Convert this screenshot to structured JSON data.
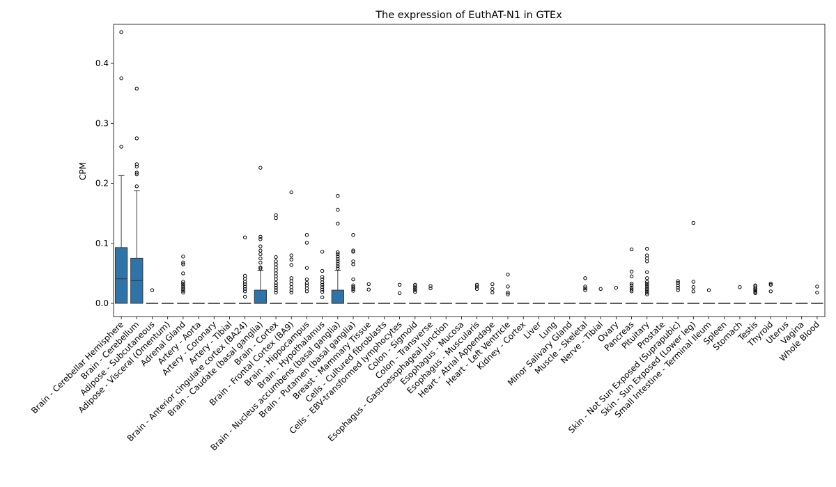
{
  "chart_data": {
    "type": "box",
    "title": "The expression of EuthAT-N1 in GTEx",
    "xlabel": "",
    "ylabel": "CPM",
    "ylim": [
      -0.022,
      0.465
    ],
    "yticks": [
      0.0,
      0.1,
      0.2,
      0.3,
      0.4
    ],
    "ytick_labels": [
      "0.0",
      "0.1",
      "0.2",
      "0.3",
      "0.4"
    ],
    "box_color": "#2f74a8",
    "categories": [
      "Brain - Cerebellar Hemisphere",
      "Brain - Cerebellum",
      "Adipose - Subcutaneous",
      "Adipose - Visceral (Omentum)",
      "Adrenal Gland",
      "Artery - Aorta",
      "Artery - Coronary",
      "Artery - Tibial",
      "Brain - Anterior cingulate cortex (BA24)",
      "Brain - Caudate (basal ganglia)",
      "Brain - Cortex",
      "Brain - Frontal Cortex (BA9)",
      "Brain - Hippocampus",
      "Brain - Hypothalamus",
      "Brain - Nucleus accumbens (basal ganglia)",
      "Brain - Putamen (basal ganglia)",
      "Breast - Mammary Tissue",
      "Cells - Cultured fibroblasts",
      "Cells - EBV-transformed lymphocytes",
      "Colon - Sigmoid",
      "Colon - Transverse",
      "Esophagus - Gastroesophageal Junction",
      "Esophagus - Mucosa",
      "Esophagus - Muscularis",
      "Heart - Atrial Appendage",
      "Heart - Left Ventricle",
      "Kidney - Cortex",
      "Liver",
      "Lung",
      "Minor Salivary Gland",
      "Muscle - Skeletal",
      "Nerve - Tibial",
      "Ovary",
      "Pancreas",
      "Pituitary",
      "Prostate",
      "Skin - Not Sun Exposed (Suprapubic)",
      "Skin - Sun Exposed (Lower leg)",
      "Small Intestine - Terminal Ileum",
      "Spleen",
      "Stomach",
      "Testis",
      "Thyroid",
      "Uterus",
      "Vagina",
      "Whole Blood"
    ],
    "boxes": [
      {
        "min": 0,
        "q1": 0,
        "median": 0.041,
        "q3": 0.093,
        "max": 0.213,
        "outliers": [
          0.261,
          0.375,
          0.452
        ]
      },
      {
        "min": 0,
        "q1": 0,
        "median": 0.038,
        "q3": 0.075,
        "max": 0.188,
        "outliers": [
          0.195,
          0.215,
          0.218,
          0.228,
          0.232,
          0.275,
          0.358
        ]
      },
      {
        "min": 0,
        "q1": 0,
        "median": 0,
        "q3": 0,
        "max": 0,
        "outliers": [
          0.022
        ]
      },
      {
        "min": 0,
        "q1": 0,
        "median": 0,
        "q3": 0,
        "max": 0,
        "outliers": []
      },
      {
        "min": 0,
        "q1": 0,
        "median": 0,
        "q3": 0,
        "max": 0,
        "outliers": [
          0.018,
          0.021,
          0.024,
          0.027,
          0.03,
          0.033,
          0.036,
          0.05,
          0.065,
          0.068,
          0.078
        ]
      },
      {
        "min": 0,
        "q1": 0,
        "median": 0,
        "q3": 0,
        "max": 0,
        "outliers": []
      },
      {
        "min": 0,
        "q1": 0,
        "median": 0,
        "q3": 0,
        "max": 0,
        "outliers": []
      },
      {
        "min": 0,
        "q1": 0,
        "median": 0,
        "q3": 0,
        "max": 0,
        "outliers": []
      },
      {
        "min": 0,
        "q1": 0,
        "median": 0,
        "q3": 0,
        "max": 0,
        "outliers": [
          0.011,
          0.02,
          0.024,
          0.028,
          0.032,
          0.036,
          0.041,
          0.046,
          0.11
        ]
      },
      {
        "min": 0,
        "q1": 0,
        "median": 0,
        "q3": 0.022,
        "max": 0.055,
        "outliers": [
          0.058,
          0.06,
          0.068,
          0.075,
          0.082,
          0.088,
          0.095,
          0.107,
          0.111,
          0.226
        ]
      },
      {
        "min": 0,
        "q1": 0,
        "median": 0,
        "q3": 0,
        "max": 0,
        "outliers": [
          0.018,
          0.022,
          0.026,
          0.03,
          0.034,
          0.04,
          0.045,
          0.05,
          0.055,
          0.06,
          0.065,
          0.07,
          0.077,
          0.142,
          0.147
        ]
      },
      {
        "min": 0,
        "q1": 0,
        "median": 0,
        "q3": 0,
        "max": 0,
        "outliers": [
          0.018,
          0.022,
          0.027,
          0.032,
          0.037,
          0.042,
          0.064,
          0.073,
          0.08,
          0.185
        ]
      },
      {
        "min": 0,
        "q1": 0,
        "median": 0,
        "q3": 0,
        "max": 0,
        "outliers": [
          0.02,
          0.025,
          0.03,
          0.034,
          0.04,
          0.059,
          0.101,
          0.114
        ]
      },
      {
        "min": 0,
        "q1": 0,
        "median": 0,
        "q3": 0,
        "max": 0,
        "outliers": [
          0.01,
          0.019,
          0.023,
          0.027,
          0.031,
          0.035,
          0.04,
          0.044,
          0.054,
          0.086
        ]
      },
      {
        "min": 0,
        "q1": 0,
        "median": 0,
        "q3": 0.022,
        "max": 0.055,
        "outliers": [
          0.058,
          0.062,
          0.066,
          0.07,
          0.074,
          0.078,
          0.082,
          0.085,
          0.133,
          0.156,
          0.179
        ]
      },
      {
        "min": 0,
        "q1": 0,
        "median": 0,
        "q3": 0,
        "max": 0,
        "outliers": [
          0.021,
          0.024,
          0.027,
          0.03,
          0.04,
          0.065,
          0.07,
          0.086,
          0.088,
          0.114
        ]
      },
      {
        "min": 0,
        "q1": 0,
        "median": 0,
        "q3": 0,
        "max": 0,
        "outliers": [
          0.023,
          0.032
        ]
      },
      {
        "min": 0,
        "q1": 0,
        "median": 0,
        "q3": 0,
        "max": 0,
        "outliers": []
      },
      {
        "min": 0,
        "q1": 0,
        "median": 0,
        "q3": 0,
        "max": 0,
        "outliers": [
          0.017,
          0.031
        ]
      },
      {
        "min": 0,
        "q1": 0,
        "median": 0,
        "q3": 0,
        "max": 0,
        "outliers": [
          0.019,
          0.022,
          0.025,
          0.028,
          0.031
        ]
      },
      {
        "min": 0,
        "q1": 0,
        "median": 0,
        "q3": 0,
        "max": 0,
        "outliers": [
          0.025,
          0.029
        ]
      },
      {
        "min": 0,
        "q1": 0,
        "median": 0,
        "q3": 0,
        "max": 0,
        "outliers": []
      },
      {
        "min": 0,
        "q1": 0,
        "median": 0,
        "q3": 0,
        "max": 0,
        "outliers": []
      },
      {
        "min": 0,
        "q1": 0,
        "median": 0,
        "q3": 0,
        "max": 0,
        "outliers": [
          0.024,
          0.028,
          0.031
        ]
      },
      {
        "min": 0,
        "q1": 0,
        "median": 0,
        "q3": 0,
        "max": 0,
        "outliers": [
          0.018,
          0.024,
          0.032
        ]
      },
      {
        "min": 0,
        "q1": 0,
        "median": 0,
        "q3": 0,
        "max": 0,
        "outliers": [
          0.015,
          0.018,
          0.028,
          0.048
        ]
      },
      {
        "min": 0,
        "q1": 0,
        "median": 0,
        "q3": 0,
        "max": 0,
        "outliers": []
      },
      {
        "min": 0,
        "q1": 0,
        "median": 0,
        "q3": 0,
        "max": 0,
        "outliers": []
      },
      {
        "min": 0,
        "q1": 0,
        "median": 0,
        "q3": 0,
        "max": 0,
        "outliers": []
      },
      {
        "min": 0,
        "q1": 0,
        "median": 0,
        "q3": 0,
        "max": 0,
        "outliers": []
      },
      {
        "min": 0,
        "q1": 0,
        "median": 0,
        "q3": 0,
        "max": 0,
        "outliers": [
          0.022,
          0.025,
          0.028,
          0.042
        ]
      },
      {
        "min": 0,
        "q1": 0,
        "median": 0,
        "q3": 0,
        "max": 0,
        "outliers": [
          0.024
        ]
      },
      {
        "min": 0,
        "q1": 0,
        "median": 0,
        "q3": 0,
        "max": 0,
        "outliers": [
          0.026
        ]
      },
      {
        "min": 0,
        "q1": 0,
        "median": 0,
        "q3": 0,
        "max": 0,
        "outliers": [
          0.02,
          0.023,
          0.026,
          0.03,
          0.033,
          0.045,
          0.053,
          0.09
        ]
      },
      {
        "min": 0,
        "q1": 0,
        "median": 0,
        "q3": 0,
        "max": 0,
        "outliers": [
          0.015,
          0.018,
          0.021,
          0.024,
          0.027,
          0.03,
          0.033,
          0.036,
          0.042,
          0.052,
          0.07,
          0.075,
          0.08,
          0.091
        ]
      },
      {
        "min": 0,
        "q1": 0,
        "median": 0,
        "q3": 0,
        "max": 0,
        "outliers": []
      },
      {
        "min": 0,
        "q1": 0,
        "median": 0,
        "q3": 0,
        "max": 0,
        "outliers": [
          0.022,
          0.026,
          0.03,
          0.034,
          0.037
        ]
      },
      {
        "min": 0,
        "q1": 0,
        "median": 0,
        "q3": 0,
        "max": 0,
        "outliers": [
          0.02,
          0.027,
          0.036,
          0.134
        ]
      },
      {
        "min": 0,
        "q1": 0,
        "median": 0,
        "q3": 0,
        "max": 0,
        "outliers": [
          0.022
        ]
      },
      {
        "min": 0,
        "q1": 0,
        "median": 0,
        "q3": 0,
        "max": 0,
        "outliers": []
      },
      {
        "min": 0,
        "q1": 0,
        "median": 0,
        "q3": 0,
        "max": 0,
        "outliers": [
          0.027
        ]
      },
      {
        "min": 0,
        "q1": 0,
        "median": 0,
        "q3": 0,
        "max": 0,
        "outliers": [
          0.017,
          0.019,
          0.021,
          0.023,
          0.025,
          0.028,
          0.03
        ]
      },
      {
        "min": 0,
        "q1": 0,
        "median": 0,
        "q3": 0,
        "max": 0,
        "outliers": [
          0.02,
          0.031,
          0.033
        ]
      },
      {
        "min": 0,
        "q1": 0,
        "median": 0,
        "q3": 0,
        "max": 0,
        "outliers": []
      },
      {
        "min": 0,
        "q1": 0,
        "median": 0,
        "q3": 0,
        "max": 0,
        "outliers": []
      },
      {
        "min": 0,
        "q1": 0,
        "median": 0,
        "q3": 0,
        "max": 0,
        "outliers": [
          0.018,
          0.028
        ]
      }
    ]
  }
}
